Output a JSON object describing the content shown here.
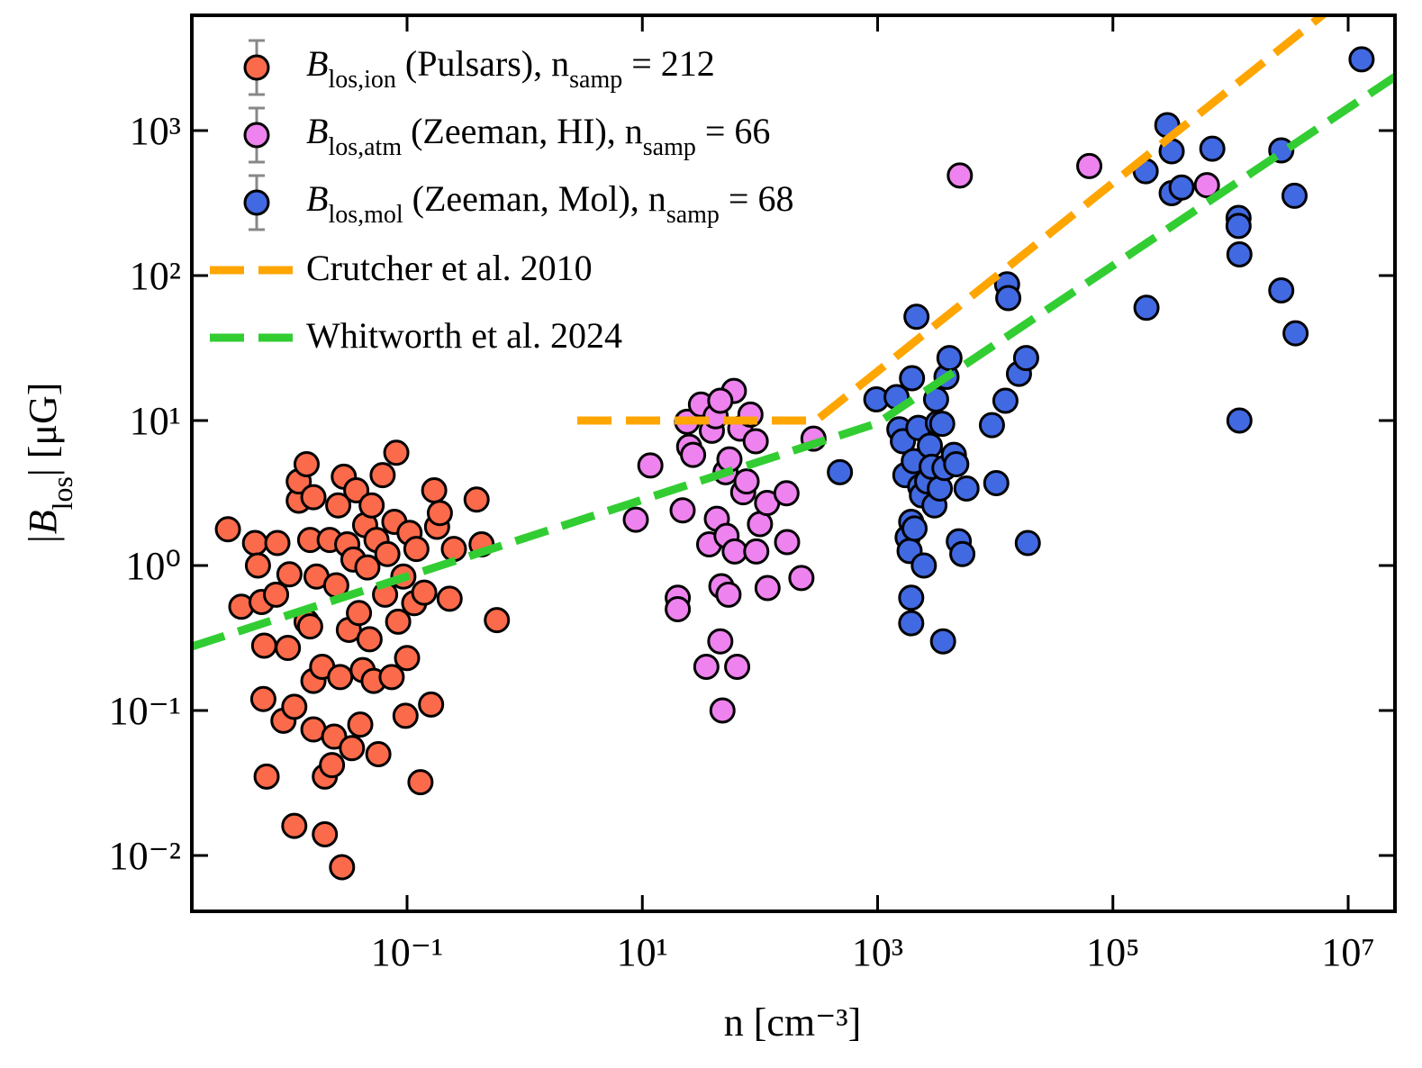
{
  "chart_data": {
    "type": "scatter",
    "xlabel": "n [cm⁻³]",
    "ylabel": [
      "|B",
      "los",
      "| [μG]"
    ],
    "xlog": true,
    "ylog": true,
    "xlim": [
      0.00148,
      25000000
    ],
    "ylim": [
      0.00412,
      6240
    ],
    "xticks": [
      {
        "value": 0.1,
        "label": "10⁻¹"
      },
      {
        "value": 10,
        "label": "10¹"
      },
      {
        "value": 1000,
        "label": "10³"
      },
      {
        "value": 100000,
        "label": "10⁵"
      },
      {
        "value": 10000000,
        "label": "10⁷"
      }
    ],
    "yticks": [
      {
        "value": 0.01,
        "label": "10⁻²"
      },
      {
        "value": 0.1,
        "label": "10⁻¹"
      },
      {
        "value": 1,
        "label": "10⁰"
      },
      {
        "value": 10,
        "label": "10¹"
      },
      {
        "value": 100,
        "label": "10²"
      },
      {
        "value": 1000,
        "label": "10³"
      }
    ],
    "legend": "upper left",
    "series": [
      {
        "name": [
          "B",
          "los,ion",
          " (Pulsars), n",
          "samp",
          " = 212"
        ],
        "color": "#fb6a4a",
        "x": [
          0.003,
          0.0039,
          0.0051,
          0.0054,
          0.0058,
          0.0061,
          0.006,
          0.0064,
          0.0079,
          0.0077,
          0.0089,
          0.0097,
          0.01,
          0.011,
          0.011,
          0.012,
          0.012,
          0.014,
          0.014,
          0.015,
          0.015,
          0.016,
          0.016,
          0.016,
          0.017,
          0.019,
          0.02,
          0.02,
          0.022,
          0.023,
          0.024,
          0.025,
          0.026,
          0.027,
          0.028,
          0.029,
          0.031,
          0.032,
          0.034,
          0.035,
          0.037,
          0.039,
          0.04,
          0.042,
          0.044,
          0.046,
          0.048,
          0.05,
          0.052,
          0.055,
          0.057,
          0.062,
          0.065,
          0.068,
          0.074,
          0.078,
          0.081,
          0.084,
          0.093,
          0.1,
          0.105,
          0.097,
          0.115,
          0.12,
          0.13,
          0.14,
          0.16,
          0.17,
          0.18,
          0.19,
          0.23,
          0.25,
          0.39,
          0.43,
          0.58
        ],
        "values": [
          1.78,
          0.52,
          1.43,
          1.0,
          0.56,
          0.28,
          0.12,
          0.035,
          1.43,
          0.63,
          0.085,
          0.27,
          0.87,
          0.016,
          0.106,
          2.8,
          3.8,
          0.41,
          5.0,
          1.5,
          0.38,
          0.16,
          0.074,
          2.96,
          0.84,
          0.2,
          0.014,
          0.035,
          1.5,
          0.042,
          0.066,
          0.73,
          2.6,
          0.17,
          0.0083,
          4.1,
          1.4,
          0.36,
          0.055,
          1.1,
          3.3,
          0.47,
          0.08,
          0.19,
          1.9,
          0.97,
          0.31,
          2.6,
          0.16,
          1.5,
          0.05,
          4.2,
          0.63,
          1.2,
          0.17,
          2.0,
          6.0,
          0.41,
          0.84,
          0.23,
          1.68,
          0.092,
          0.55,
          1.3,
          0.032,
          0.65,
          0.11,
          3.3,
          1.85,
          2.3,
          0.59,
          1.3,
          2.85,
          1.4,
          0.42
        ]
      },
      {
        "name": [
          "B",
          "los,atm",
          " (Zeeman, HI), n",
          "samp",
          " = 66"
        ],
        "color": "#ee82ee",
        "x": [
          8.8,
          11.7,
          20,
          20,
          22,
          24,
          25,
          35,
          37,
          39,
          43,
          46,
          47,
          48,
          51,
          52,
          54,
          55,
          60,
          61,
          64,
          68,
          72,
          77,
          92,
          93,
          100,
          115,
          116,
          168,
          170,
          225,
          5000,
          63000,
          630000,
          31.5,
          42,
          46,
          27,
          83,
          285
        ],
        "values": [
          2.07,
          4.9,
          0.6,
          0.5,
          2.4,
          9.8,
          6.6,
          0.2,
          1.4,
          8.5,
          2.1,
          0.3,
          0.72,
          0.1,
          4.4,
          1.6,
          0.63,
          5.4,
          16,
          1.25,
          0.2,
          8.8,
          3.2,
          3.8,
          7.2,
          1.25,
          1.93,
          2.7,
          0.7,
          3.15,
          1.45,
          0.82,
          490,
          570,
          420,
          12.9,
          10.7,
          13.7,
          5.8,
          11,
          7.5
        ]
      },
      {
        "name": [
          "B",
          "los,mol",
          " (Zeeman, Mol), n",
          "samp",
          " = 68"
        ],
        "color": "#4169e1",
        "x": [
          478,
          975,
          1450,
          1530,
          1640,
          1720,
          1800,
          1870,
          1930,
          1930,
          1930,
          1960,
          2030,
          2060,
          2140,
          2220,
          2300,
          2380,
          2470,
          2640,
          2780,
          2880,
          3040,
          3140,
          3250,
          3380,
          3540,
          3600,
          3700,
          3850,
          4080,
          4450,
          4660,
          4900,
          5250,
          5700,
          9370,
          10200,
          12200,
          12600,
          12900,
          15900,
          18300,
          18900,
          190000,
          193000,
          290000,
          316000,
          316000,
          384000,
          700000,
          1170000,
          1170000,
          1190000,
          1190000,
          2700000,
          2700000,
          3500000,
          3570000,
          13000000
        ],
        "values": [
          4.4,
          14,
          14.5,
          8.7,
          7.2,
          4.2,
          1.56,
          1.26,
          2.0,
          0.6,
          0.4,
          19.6,
          5.25,
          1.8,
          52,
          8.9,
          3.5,
          3.05,
          1.0,
          3.8,
          6.7,
          4.8,
          2.6,
          14,
          9.6,
          3.4,
          9.5,
          0.3,
          4.7,
          20,
          27,
          5.8,
          5.0,
          1.47,
          1.2,
          3.4,
          9.3,
          3.7,
          13.7,
          87,
          70,
          21,
          27,
          1.43,
          525,
          60,
          1090,
          720,
          370,
          405,
          750,
          250,
          220,
          140,
          10,
          730,
          79,
          355,
          40,
          3100
        ]
      },
      {
        "name": "Crutcher et al. 2010",
        "color": "#ffa500",
        "linestyle": "dashed",
        "x": [
          2.8,
          300,
          6300000
        ],
        "values": [
          10,
          10,
          6430
        ]
      },
      {
        "name": "Whitworth et al. 2024",
        "color": "#32cd32",
        "linestyle": "dashed",
        "x": [
          0.00148,
          1000,
          25000000
        ],
        "values": [
          0.276,
          9.6,
          2350
        ]
      }
    ]
  }
}
